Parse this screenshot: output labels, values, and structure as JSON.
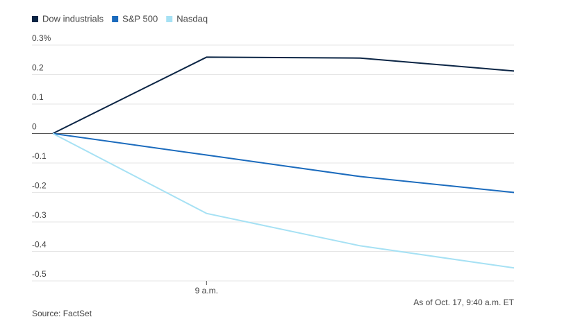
{
  "chart_data": {
    "type": "line",
    "categories": [
      null,
      "9 a.m.",
      null,
      null
    ],
    "series": [
      {
        "name": "Dow industrials",
        "color": "#0b2545",
        "values": [
          0,
          0.259,
          0.256,
          0.212
        ]
      },
      {
        "name": "S&P 500",
        "color": "#1b6bbd",
        "values": [
          0,
          -0.073,
          -0.146,
          -0.2
        ]
      },
      {
        "name": "Nasdaq",
        "color": "#a6e1f4",
        "values": [
          0,
          -0.271,
          -0.381,
          -0.456
        ]
      }
    ],
    "ylim": [
      -0.5,
      0.3
    ],
    "yticks": [
      {
        "value": 0.3,
        "label": "0.3%"
      },
      0.2,
      0.1,
      0,
      -0.1,
      -0.2,
      -0.3,
      -0.4,
      -0.5
    ],
    "grid": true,
    "source": "Source: FactSet",
    "note": "As of Oct. 17, 9:40 a.m. ET"
  }
}
